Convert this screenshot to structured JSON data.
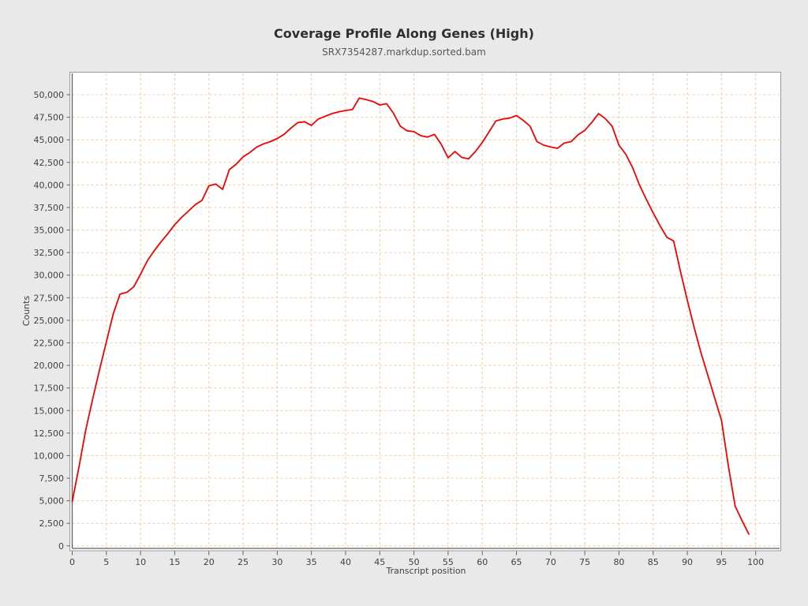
{
  "page": {
    "background": "#e9e9e9",
    "plot_background": "#ffffff"
  },
  "chart_data": {
    "type": "line",
    "title": "Coverage Profile Along Genes (High)",
    "subtitle": "SRX7354287.markdup.sorted.bam",
    "xlabel": "Transcript position",
    "ylabel": "Counts",
    "xlim": [
      0,
      103.5
    ],
    "ylim": [
      -280,
      52360
    ],
    "x_ticks": [
      0,
      5,
      10,
      15,
      20,
      25,
      30,
      35,
      40,
      45,
      50,
      55,
      60,
      65,
      70,
      75,
      80,
      85,
      90,
      95,
      100
    ],
    "y_ticks": [
      0,
      2500,
      5000,
      7500,
      10000,
      12500,
      15000,
      17500,
      20000,
      22500,
      25000,
      27500,
      30000,
      32500,
      35000,
      37500,
      40000,
      42500,
      45000,
      47500,
      50000
    ],
    "grid": {
      "on": true,
      "color": "#f7c9a0",
      "dash": "3,3"
    },
    "legend": {
      "visible": false
    },
    "colors": {
      "line": "#f30000",
      "axis": "#5f5f5f",
      "border": "#9a9a9a"
    },
    "series": [
      {
        "name": "SRX7354287.markdup.sorted.bam",
        "x_start": 0,
        "x_step": 1,
        "values": [
          4900,
          8800,
          12900,
          16300,
          19500,
          22600,
          25700,
          27900,
          28100,
          28700,
          30100,
          31600,
          32700,
          33700,
          34600,
          35600,
          36400,
          37100,
          37800,
          38300,
          39900,
          40100,
          39500,
          41700,
          42300,
          43100,
          43600,
          44200,
          44550,
          44800,
          45150,
          45600,
          46300,
          46900,
          47000,
          46600,
          47300,
          47600,
          47900,
          48100,
          48250,
          48350,
          49620,
          49450,
          49250,
          48850,
          49000,
          47950,
          46500,
          46000,
          45900,
          45450,
          45300,
          45600,
          44500,
          43000,
          43700,
          43050,
          42900,
          43700,
          44700,
          45900,
          47100,
          47300,
          47400,
          47700,
          47150,
          46500,
          44800,
          44400,
          44200,
          44050,
          44650,
          44800,
          45550,
          46050,
          46900,
          47900,
          47350,
          46500,
          44400,
          43400,
          41900,
          40000,
          38400,
          36900,
          35500,
          34200,
          33800,
          30400,
          27200,
          24200,
          21400,
          18900,
          16400,
          13900,
          8900,
          4400,
          2800,
          1300
        ]
      }
    ]
  }
}
